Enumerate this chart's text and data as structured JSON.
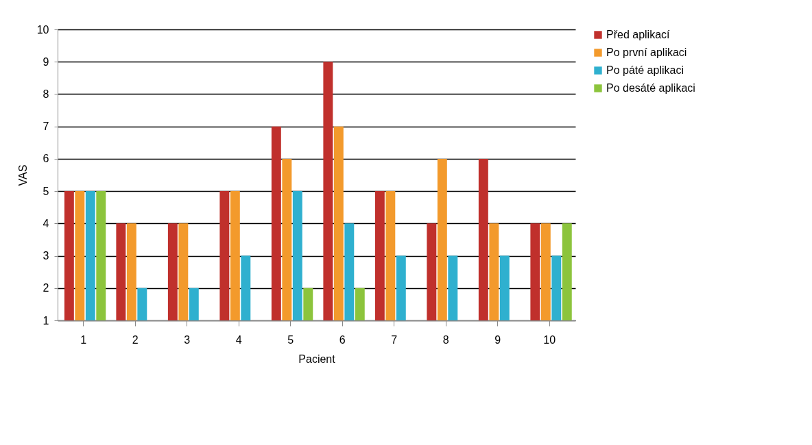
{
  "chart_data": {
    "type": "bar",
    "xlabel": "Pacient",
    "ylabel": "VAS",
    "categories": [
      "1",
      "2",
      "3",
      "4",
      "5",
      "6",
      "7",
      "8",
      "9",
      "10"
    ],
    "series": [
      {
        "name": "Před aplikací",
        "color": "#c0302c",
        "values": [
          5,
          4,
          4,
          5,
          7,
          9,
          5,
          4,
          6,
          4
        ]
      },
      {
        "name": "Po první aplikaci",
        "color": "#f39a2c",
        "values": [
          5,
          4,
          4,
          5,
          6,
          7,
          5,
          6,
          4,
          4
        ]
      },
      {
        "name": "Po páté aplikaci",
        "color": "#2fb0cf",
        "values": [
          5,
          2,
          2,
          3,
          5,
          4,
          3,
          3,
          3,
          3
        ]
      },
      {
        "name": "Po desáté aplikaci",
        "color": "#8cc43c",
        "values": [
          5,
          1,
          1,
          1,
          2,
          2,
          1,
          1,
          1,
          4
        ]
      }
    ],
    "ylim": [
      1,
      10
    ],
    "yticks": [
      1,
      2,
      3,
      4,
      5,
      6,
      7,
      8,
      9,
      10
    ],
    "grid": "y",
    "legend": "right"
  }
}
